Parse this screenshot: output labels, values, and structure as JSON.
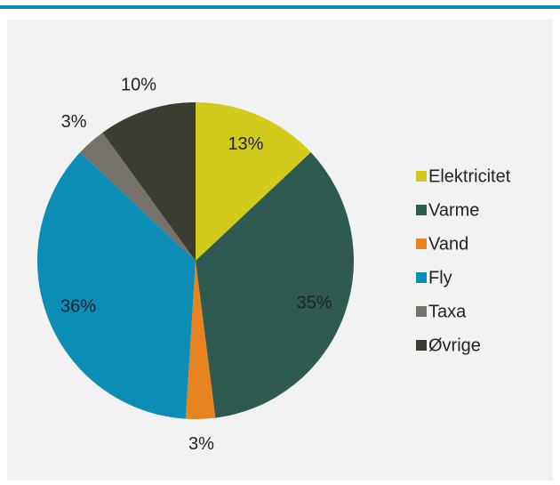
{
  "chart_data": {
    "type": "pie",
    "categories": [
      "Elektricitet",
      "Varme",
      "Vand",
      "Fly",
      "Taxa",
      "Øvrige"
    ],
    "values": [
      13,
      35,
      3,
      36,
      3,
      10
    ],
    "value_labels": [
      "13%",
      "35%",
      "3%",
      "36%",
      "3%",
      "10%"
    ],
    "colors": [
      "#d3cb1c",
      "#2f5a51",
      "#e8841f",
      "#0b8db6",
      "#77716b",
      "#3a3d31"
    ],
    "legend": "right"
  }
}
